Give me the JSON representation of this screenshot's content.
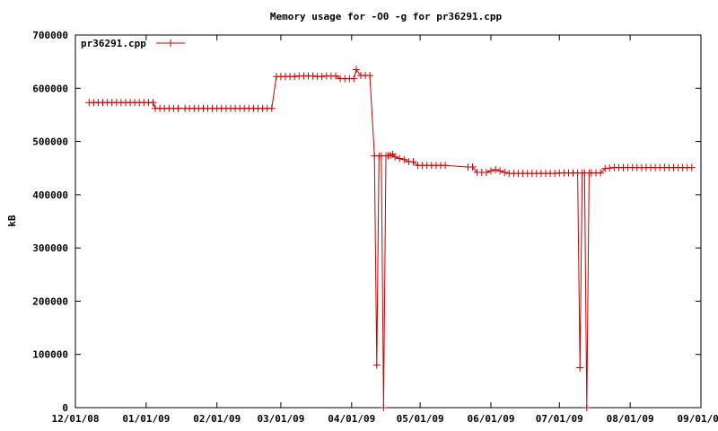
{
  "chart_data": {
    "type": "line",
    "title": "Memory usage for -O0 -g for pr36291.cpp",
    "xlabel": "",
    "ylabel": "kB",
    "x_ticks": [
      "12/01/08",
      "01/01/09",
      "02/01/09",
      "03/01/09",
      "04/01/09",
      "05/01/09",
      "06/01/09",
      "07/01/09",
      "08/01/09",
      "09/01/09"
    ],
    "y_ticks": [
      "0",
      "100000",
      "200000",
      "300000",
      "400000",
      "500000",
      "600000",
      "700000"
    ],
    "xlim": [
      "2008-12-01",
      "2009-09-01"
    ],
    "ylim": [
      0,
      700000
    ],
    "legend_position": "top-left",
    "grid": false,
    "colors": {
      "series": "#cc0000",
      "axes": "#000000",
      "background": "#ffffff"
    },
    "series": [
      {
        "name": "pr36291.cpp",
        "marker": "plus",
        "points": [
          [
            "2008-12-07",
            573000
          ],
          [
            "2008-12-09",
            573000
          ],
          [
            "2008-12-11",
            573000
          ],
          [
            "2008-12-13",
            573000
          ],
          [
            "2008-12-15",
            573000
          ],
          [
            "2008-12-17",
            573000
          ],
          [
            "2008-12-19",
            573000
          ],
          [
            "2008-12-21",
            573000
          ],
          [
            "2008-12-23",
            573000
          ],
          [
            "2008-12-25",
            573000
          ],
          [
            "2008-12-27",
            573000
          ],
          [
            "2008-12-29",
            573000
          ],
          [
            "2008-12-31",
            573000
          ],
          [
            "2009-01-02",
            573000
          ],
          [
            "2009-01-04",
            573000
          ],
          [
            "2009-01-05",
            562000
          ],
          [
            "2009-01-07",
            562000
          ],
          [
            "2009-01-09",
            562000
          ],
          [
            "2009-01-11",
            562000
          ],
          [
            "2009-01-13",
            562000
          ],
          [
            "2009-01-15",
            562000
          ],
          [
            "2009-01-18",
            562000
          ],
          [
            "2009-01-20",
            562000
          ],
          [
            "2009-01-22",
            562000
          ],
          [
            "2009-01-24",
            562000
          ],
          [
            "2009-01-26",
            562000
          ],
          [
            "2009-01-28",
            562000
          ],
          [
            "2009-01-30",
            562000
          ],
          [
            "2009-02-01",
            562000
          ],
          [
            "2009-02-03",
            562000
          ],
          [
            "2009-02-05",
            562000
          ],
          [
            "2009-02-07",
            562000
          ],
          [
            "2009-02-09",
            562000
          ],
          [
            "2009-02-11",
            562000
          ],
          [
            "2009-02-13",
            562000
          ],
          [
            "2009-02-15",
            562000
          ],
          [
            "2009-02-17",
            562000
          ],
          [
            "2009-02-19",
            562000
          ],
          [
            "2009-02-21",
            562000
          ],
          [
            "2009-02-23",
            562000
          ],
          [
            "2009-02-25",
            562000
          ],
          [
            "2009-02-27",
            622000
          ],
          [
            "2009-03-01",
            622000
          ],
          [
            "2009-03-03",
            622000
          ],
          [
            "2009-03-05",
            622000
          ],
          [
            "2009-03-07",
            622000
          ],
          [
            "2009-03-09",
            623000
          ],
          [
            "2009-03-11",
            623000
          ],
          [
            "2009-03-13",
            623000
          ],
          [
            "2009-03-15",
            623000
          ],
          [
            "2009-03-17",
            622000
          ],
          [
            "2009-03-19",
            622000
          ],
          [
            "2009-03-21",
            623000
          ],
          [
            "2009-03-23",
            623000
          ],
          [
            "2009-03-25",
            623000
          ],
          [
            "2009-03-27",
            618000
          ],
          [
            "2009-03-29",
            618000
          ],
          [
            "2009-03-31",
            618000
          ],
          [
            "2009-04-02",
            618000
          ],
          [
            "2009-04-03",
            635000
          ],
          [
            "2009-04-05",
            624000
          ],
          [
            "2009-04-07",
            624000
          ],
          [
            "2009-04-09",
            624000
          ],
          [
            "2009-04-11",
            473000
          ],
          [
            "2009-04-12",
            80000
          ],
          [
            "2009-04-13",
            473000
          ],
          [
            "2009-04-14",
            473000
          ],
          [
            "2009-04-15",
            0
          ],
          [
            "2009-04-16",
            473000
          ],
          [
            "2009-04-17",
            473000
          ],
          [
            "2009-04-18",
            474000
          ],
          [
            "2009-04-19",
            476000
          ],
          [
            "2009-04-20",
            471000
          ],
          [
            "2009-04-22",
            468000
          ],
          [
            "2009-04-24",
            466000
          ],
          [
            "2009-04-26",
            462000
          ],
          [
            "2009-04-28",
            462000
          ],
          [
            "2009-04-30",
            455000
          ],
          [
            "2009-05-02",
            455000
          ],
          [
            "2009-05-04",
            455000
          ],
          [
            "2009-05-06",
            455000
          ],
          [
            "2009-05-08",
            455000
          ],
          [
            "2009-05-10",
            455000
          ],
          [
            "2009-05-12",
            455000
          ],
          [
            "2009-05-22",
            452000
          ],
          [
            "2009-05-24",
            452000
          ],
          [
            "2009-05-26",
            442000
          ],
          [
            "2009-05-28",
            442000
          ],
          [
            "2009-05-30",
            442000
          ],
          [
            "2009-06-01",
            445000
          ],
          [
            "2009-06-03",
            447000
          ],
          [
            "2009-06-05",
            445000
          ],
          [
            "2009-06-07",
            442000
          ],
          [
            "2009-06-09",
            440000
          ],
          [
            "2009-06-11",
            440000
          ],
          [
            "2009-06-13",
            440000
          ],
          [
            "2009-06-15",
            440000
          ],
          [
            "2009-06-17",
            440000
          ],
          [
            "2009-06-19",
            440000
          ],
          [
            "2009-06-21",
            440000
          ],
          [
            "2009-06-23",
            440000
          ],
          [
            "2009-06-25",
            440000
          ],
          [
            "2009-06-27",
            440000
          ],
          [
            "2009-06-29",
            440000
          ],
          [
            "2009-07-01",
            441000
          ],
          [
            "2009-07-03",
            441000
          ],
          [
            "2009-07-05",
            441000
          ],
          [
            "2009-07-07",
            441000
          ],
          [
            "2009-07-09",
            441000
          ],
          [
            "2009-07-10",
            75000
          ],
          [
            "2009-07-11",
            441000
          ],
          [
            "2009-07-12",
            441000
          ],
          [
            "2009-07-13",
            0
          ],
          [
            "2009-07-14",
            441000
          ],
          [
            "2009-07-15",
            441000
          ],
          [
            "2009-07-17",
            441000
          ],
          [
            "2009-07-19",
            441000
          ],
          [
            "2009-07-21",
            449000
          ],
          [
            "2009-07-23",
            450000
          ],
          [
            "2009-07-25",
            451000
          ],
          [
            "2009-07-27",
            451000
          ],
          [
            "2009-07-29",
            451000
          ],
          [
            "2009-07-31",
            451000
          ],
          [
            "2009-08-02",
            451000
          ],
          [
            "2009-08-04",
            451000
          ],
          [
            "2009-08-06",
            451000
          ],
          [
            "2009-08-08",
            451000
          ],
          [
            "2009-08-10",
            451000
          ],
          [
            "2009-08-12",
            451000
          ],
          [
            "2009-08-14",
            451000
          ],
          [
            "2009-08-16",
            451000
          ],
          [
            "2009-08-18",
            451000
          ],
          [
            "2009-08-20",
            451000
          ],
          [
            "2009-08-22",
            451000
          ],
          [
            "2009-08-24",
            451000
          ],
          [
            "2009-08-26",
            451000
          ],
          [
            "2009-08-28",
            451000
          ]
        ]
      }
    ]
  }
}
